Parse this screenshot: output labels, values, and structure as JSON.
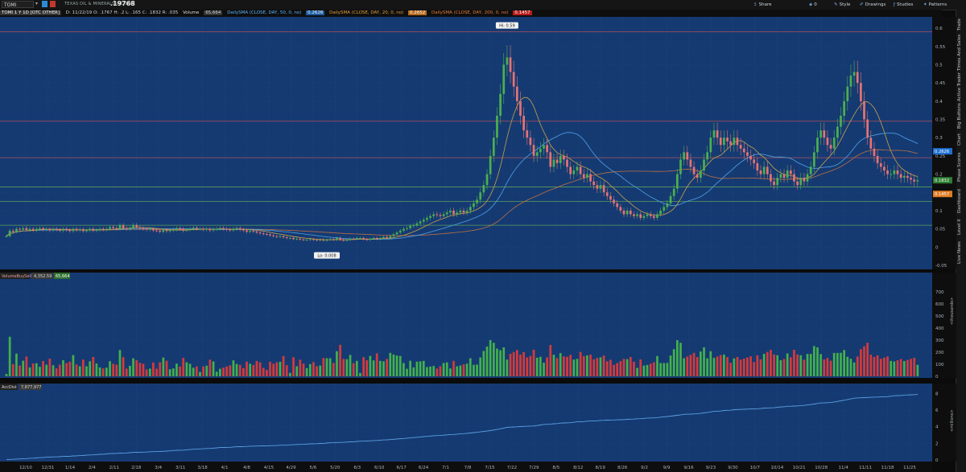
{
  "header": {
    "symbol": "TOMI",
    "company": "TEXAS OIL & MINERALS INC COM",
    "last_price": ".19768",
    "toolbar": [
      {
        "label": "Share",
        "icon": "share-icon"
      },
      {
        "label": "0",
        "icon": "zero-icon"
      },
      {
        "label": "Style",
        "icon": "style-icon"
      },
      {
        "label": "Drawings",
        "icon": "drawings-icon"
      },
      {
        "label": "Studies",
        "icon": "studies-icon"
      },
      {
        "label": "Patterns",
        "icon": "patterns-icon"
      }
    ]
  },
  "study_bar": {
    "symbol": "TOMI 1 Y 1D [OTC OTHER]",
    "ohlc": "D: 11/22/19  O: .1767  H: .2  L: .165  C: .1832  R: .035",
    "volume_label": "Volume",
    "volume_value": "65,664",
    "sma50_label": "DailySMA (CLOSE, DAY, 50, 0, no)",
    "sma50_value": "0.2626",
    "sma20_label": "DailySMA (CLOSE, DAY, 20, 0, no)",
    "sma20_value": "0.2652",
    "sma200_label": "DailySMA (CLOSE, DAY, 200, 0, no)",
    "sma200_value": "0.1457"
  },
  "right_rail": [
    "Trade",
    "Times And Sales",
    "Active Trader",
    "Big Buttons",
    "Chart",
    "Phase Scores",
    "Dashboard",
    "Level II",
    "Live News"
  ],
  "colors": {
    "panel_bg": "#153a72",
    "grid": "#2a4f86",
    "up": "#4caf50",
    "down": "#e57373",
    "vol_up": "#43b14b",
    "vol_down": "#d63a3a",
    "sma20": "#c9a24a",
    "sma50": "#4fa3e6",
    "sma200": "#c07040",
    "accdist": "#5aa0e0",
    "hline_red": "#b0505a",
    "hline_green": "#5aa05a"
  },
  "chart_data": [
    {
      "type": "candlestick",
      "panel": "price",
      "ylim": [
        -0.05,
        0.62
      ],
      "yticks": [
        "0.6",
        "0.55",
        "0.5",
        "0.45",
        "0.4",
        "0.35",
        "0.3",
        "0.25",
        "0.2",
        "0.15",
        "0.1",
        "0.05",
        "0",
        "-0.05"
      ],
      "hi_label": "Hi: 0.59",
      "hi_value": 0.59,
      "lo_label": "Lo: 0.008",
      "lo_value": 0.008,
      "price_tags": [
        {
          "label": "0.2626",
          "value": 0.2626,
          "color": "#1f6fd1"
        },
        {
          "label": "0.1832",
          "value": 0.1832,
          "color": "#2e7d32"
        },
        {
          "label": "0.1457",
          "value": 0.1457,
          "color": "#e07b24"
        }
      ],
      "hlines": [
        {
          "value": 0.59,
          "color": "red"
        },
        {
          "value": 0.345,
          "color": "red"
        },
        {
          "value": 0.245,
          "color": "red"
        },
        {
          "value": 0.165,
          "color": "green"
        },
        {
          "value": 0.125,
          "color": "green"
        },
        {
          "value": 0.06,
          "color": "green"
        }
      ],
      "close": [
        0.03,
        0.045,
        0.042,
        0.05,
        0.048,
        0.052,
        0.047,
        0.05,
        0.046,
        0.05,
        0.052,
        0.048,
        0.05,
        0.046,
        0.05,
        0.048,
        0.045,
        0.05,
        0.047,
        0.044,
        0.05,
        0.046,
        0.049,
        0.044,
        0.046,
        0.05,
        0.045,
        0.047,
        0.05,
        0.048,
        0.05,
        0.055,
        0.052,
        0.05,
        0.06,
        0.052,
        0.05,
        0.053,
        0.06,
        0.055,
        0.052,
        0.05,
        0.048,
        0.05,
        0.046,
        0.045,
        0.042,
        0.047,
        0.044,
        0.046,
        0.048,
        0.052,
        0.05,
        0.045,
        0.048,
        0.05,
        0.053,
        0.05,
        0.05,
        0.048,
        0.05,
        0.046,
        0.049,
        0.05,
        0.052,
        0.05,
        0.048,
        0.046,
        0.05,
        0.052,
        0.048,
        0.046,
        0.042,
        0.045,
        0.043,
        0.04,
        0.038,
        0.036,
        0.035,
        0.032,
        0.03,
        0.028,
        0.03,
        0.027,
        0.025,
        0.025,
        0.022,
        0.023,
        0.021,
        0.02,
        0.02,
        0.022,
        0.02,
        0.019,
        0.02,
        0.018,
        0.02,
        0.022,
        0.02,
        0.025,
        0.02,
        0.018,
        0.02,
        0.023,
        0.022,
        0.025,
        0.025,
        0.022,
        0.02,
        0.023,
        0.025,
        0.022,
        0.025,
        0.028,
        0.025,
        0.03,
        0.035,
        0.04,
        0.045,
        0.05,
        0.052,
        0.058,
        0.06,
        0.065,
        0.07,
        0.075,
        0.08,
        0.085,
        0.09,
        0.088,
        0.085,
        0.09,
        0.095,
        0.1,
        0.09,
        0.095,
        0.1,
        0.095,
        0.1,
        0.11,
        0.12,
        0.13,
        0.15,
        0.17,
        0.2,
        0.25,
        0.3,
        0.36,
        0.42,
        0.5,
        0.52,
        0.48,
        0.44,
        0.4,
        0.36,
        0.32,
        0.3,
        0.28,
        0.25,
        0.26,
        0.27,
        0.28,
        0.26,
        0.22,
        0.24,
        0.23,
        0.25,
        0.24,
        0.22,
        0.2,
        0.21,
        0.22,
        0.2,
        0.19,
        0.2,
        0.18,
        0.17,
        0.16,
        0.17,
        0.15,
        0.14,
        0.13,
        0.12,
        0.11,
        0.1,
        0.09,
        0.1,
        0.09,
        0.085,
        0.09,
        0.08,
        0.085,
        0.09,
        0.085,
        0.08,
        0.09,
        0.1,
        0.11,
        0.12,
        0.14,
        0.16,
        0.2,
        0.24,
        0.26,
        0.24,
        0.22,
        0.2,
        0.19,
        0.21,
        0.24,
        0.26,
        0.3,
        0.32,
        0.3,
        0.28,
        0.3,
        0.29,
        0.28,
        0.3,
        0.28,
        0.27,
        0.26,
        0.25,
        0.24,
        0.23,
        0.21,
        0.2,
        0.22,
        0.2,
        0.18,
        0.17,
        0.19,
        0.2,
        0.19,
        0.21,
        0.2,
        0.18,
        0.17,
        0.19,
        0.18,
        0.2,
        0.22,
        0.26,
        0.3,
        0.32,
        0.3,
        0.28,
        0.27,
        0.3,
        0.33,
        0.36,
        0.4,
        0.44,
        0.47,
        0.48,
        0.45,
        0.4,
        0.35,
        0.3,
        0.27,
        0.25,
        0.23,
        0.22,
        0.21,
        0.2,
        0.2,
        0.21,
        0.2,
        0.19,
        0.195,
        0.19,
        0.185,
        0.18,
        0.183
      ]
    },
    {
      "type": "bar",
      "panel": "volume",
      "label": "VolumeBuySell",
      "values_label": [
        "4,352.59",
        "65,664"
      ],
      "ylim": [
        0,
        780
      ],
      "yticks": [
        "700",
        "600",
        "500",
        "400",
        "300",
        "200",
        "100",
        "0"
      ],
      "unit_label": "<thousands>"
    },
    {
      "type": "line",
      "panel": "accdist",
      "label": "AccDist",
      "value_label": "7,877,977",
      "ylim": [
        0,
        9
      ],
      "yticks": [
        "8",
        "6",
        "4",
        "2",
        "0"
      ],
      "unit_label": "<millions>"
    }
  ],
  "x_axis": {
    "labels": [
      "12/10",
      "12/31",
      "1/14",
      "2/4",
      "2/11",
      "2/18",
      "3/4",
      "3/11",
      "3/18",
      "4/1",
      "4/8",
      "4/15",
      "4/29",
      "5/6",
      "5/20",
      "6/3",
      "6/10",
      "6/17",
      "6/24",
      "7/1",
      "7/8",
      "7/15",
      "7/22",
      "7/29",
      "8/5",
      "8/12",
      "8/19",
      "8/26",
      "9/2",
      "9/9",
      "9/16",
      "9/23",
      "9/30",
      "10/7",
      "10/14",
      "10/21",
      "10/28",
      "11/4",
      "11/11",
      "11/18",
      "11/25"
    ]
  }
}
